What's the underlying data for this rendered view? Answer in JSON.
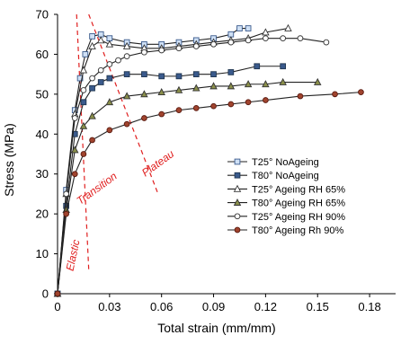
{
  "chart_data": {
    "type": "line",
    "xlabel": "Total strain (mm/mm)",
    "ylabel": "Stress (MPa)",
    "xlim": [
      0,
      0.195
    ],
    "ylim": [
      0,
      70
    ],
    "xticks": [
      "0",
      "0.03",
      "0.06",
      "0.09",
      "0.12",
      "0.15",
      "0.18"
    ],
    "yticks": [
      "0",
      "10",
      "20",
      "30",
      "40",
      "50",
      "60",
      "70"
    ],
    "grid": false,
    "legend_position": "right",
    "series": [
      {
        "name": "T25° NoAgeing",
        "marker": "square",
        "fill": "#cfe0f5",
        "stroke": "#3a5a8c",
        "x": [
          0,
          0.005,
          0.01,
          0.013,
          0.016,
          0.02,
          0.025,
          0.03,
          0.04,
          0.05,
          0.06,
          0.07,
          0.08,
          0.09,
          0.1,
          0.105,
          0.11
        ],
        "y": [
          0,
          26,
          46,
          54,
          60,
          64.5,
          65,
          64,
          63,
          62.5,
          62.5,
          63,
          63.5,
          64,
          65,
          66.5,
          66.5
        ]
      },
      {
        "name": "T80° NoAgeing",
        "marker": "square",
        "fill": "#3a5a8c",
        "stroke": "#1f3550",
        "x": [
          0,
          0.005,
          0.01,
          0.015,
          0.02,
          0.025,
          0.03,
          0.04,
          0.05,
          0.06,
          0.07,
          0.08,
          0.09,
          0.1,
          0.115,
          0.13
        ],
        "y": [
          0,
          22,
          40,
          48,
          51.5,
          53,
          54,
          55,
          55,
          54.5,
          54.5,
          55,
          55,
          55.5,
          57,
          57
        ]
      },
      {
        "name": "T25° Ageing RH 65%",
        "marker": "triangle",
        "fill": "#ffffff",
        "stroke": "#333333",
        "x": [
          0,
          0.005,
          0.01,
          0.015,
          0.02,
          0.025,
          0.03,
          0.04,
          0.05,
          0.06,
          0.07,
          0.08,
          0.09,
          0.1,
          0.11,
          0.12,
          0.133
        ],
        "y": [
          0,
          25,
          45,
          56,
          62,
          63.5,
          62.5,
          62,
          61.5,
          61.5,
          62,
          62.5,
          63,
          63.5,
          64,
          65.5,
          66.5
        ]
      },
      {
        "name": "T80° Ageing RH 65%",
        "marker": "triangle",
        "fill": "#8a8f4a",
        "stroke": "#333333",
        "x": [
          0,
          0.005,
          0.01,
          0.015,
          0.02,
          0.03,
          0.04,
          0.05,
          0.06,
          0.07,
          0.08,
          0.09,
          0.1,
          0.11,
          0.12,
          0.13,
          0.15
        ],
        "y": [
          0,
          21,
          36,
          42,
          44.5,
          48,
          49.5,
          50,
          50.5,
          51,
          51.5,
          52,
          52,
          52.5,
          52.5,
          53,
          53
        ]
      },
      {
        "name": "T25° Ageing RH 90%",
        "marker": "circle",
        "fill": "#ffffff",
        "stroke": "#333333",
        "x": [
          0,
          0.005,
          0.01,
          0.015,
          0.02,
          0.025,
          0.03,
          0.035,
          0.04,
          0.05,
          0.06,
          0.07,
          0.08,
          0.09,
          0.1,
          0.11,
          0.12,
          0.13,
          0.14,
          0.155
        ],
        "y": [
          0,
          25,
          44,
          51,
          54,
          56,
          57.5,
          58.5,
          59.5,
          60.5,
          61,
          61.5,
          62,
          62.5,
          63,
          63.5,
          64,
          64,
          64,
          63
        ]
      },
      {
        "name": "T80° Ageing Rh 90%",
        "marker": "circle",
        "fill": "#a0442e",
        "stroke": "#5a1a10",
        "x": [
          0,
          0.005,
          0.01,
          0.015,
          0.02,
          0.03,
          0.04,
          0.05,
          0.06,
          0.07,
          0.08,
          0.09,
          0.1,
          0.11,
          0.12,
          0.14,
          0.16,
          0.175
        ],
        "y": [
          0,
          20,
          30,
          35,
          38.5,
          41,
          42.5,
          44,
          45,
          46,
          46.5,
          47,
          47.5,
          48,
          48.5,
          49.5,
          50,
          50.5
        ]
      }
    ],
    "annotations": [
      {
        "text": "Elastic",
        "color": "#e02020"
      },
      {
        "text": "Transition",
        "color": "#e02020"
      },
      {
        "text": "Plateau",
        "color": "#e02020"
      }
    ],
    "divider_lines": [
      {
        "x": [
          0.011,
          0.018
        ],
        "y": [
          70,
          6
        ]
      },
      {
        "x": [
          0.018,
          0.058
        ],
        "y": [
          70,
          25
        ]
      }
    ]
  }
}
